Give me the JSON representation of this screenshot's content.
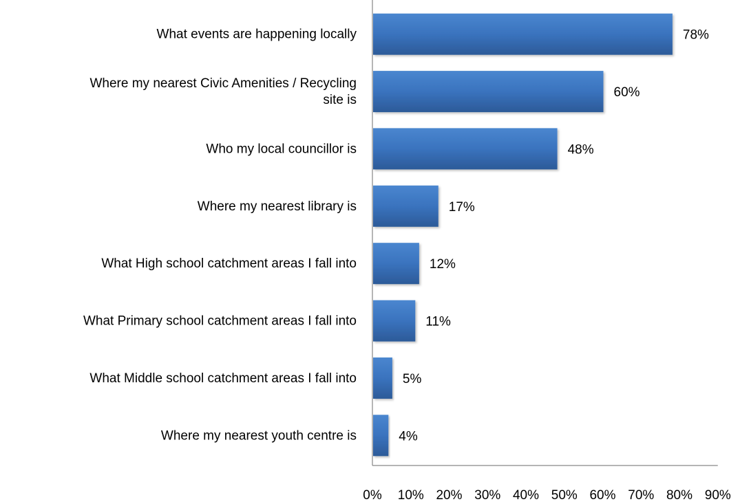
{
  "chart_data": {
    "type": "bar",
    "orientation": "horizontal",
    "categories": [
      [
        "What events are happening locally"
      ],
      [
        "Where my nearest Civic Amenities / Recycling",
        "site is"
      ],
      [
        "Who my local councillor is"
      ],
      [
        "Where my nearest library is"
      ],
      [
        "What High school catchment areas I fall into"
      ],
      [
        "What Primary school catchment areas I fall into"
      ],
      [
        "What Middle school catchment areas I fall into"
      ],
      [
        "Where my nearest youth centre is"
      ]
    ],
    "values": [
      78,
      60,
      48,
      17,
      12,
      11,
      5,
      4
    ],
    "value_labels": [
      "78%",
      "60%",
      "48%",
      "17%",
      "12%",
      "11%",
      "5%",
      "4%"
    ],
    "x_ticks": [
      "0%",
      "10%",
      "20%",
      "30%",
      "40%",
      "50%",
      "60%",
      "70%",
      "80%",
      "90%"
    ],
    "xlim": [
      0,
      90
    ],
    "grid": false,
    "bar_color": "#3a73be",
    "bar_color_dark": "#2f5e9e"
  }
}
